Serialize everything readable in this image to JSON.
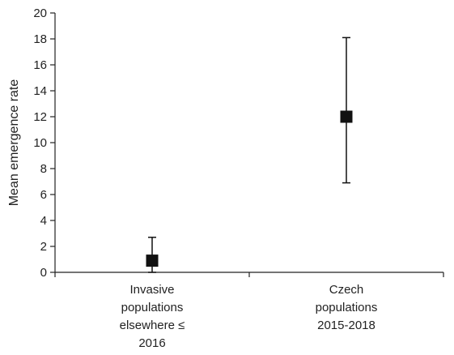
{
  "chart_data": {
    "type": "scatter",
    "title": "",
    "xlabel": "",
    "ylabel": "Mean emergence rate",
    "ylim": [
      0,
      20
    ],
    "yticks": [
      0,
      2,
      4,
      6,
      8,
      10,
      12,
      14,
      16,
      18,
      20
    ],
    "grid": false,
    "legend": "none",
    "categories": [
      [
        "Invasive",
        "populations",
        "elsewhere ≤",
        "2016"
      ],
      [
        "Czech",
        "populations",
        "2015-2018"
      ]
    ],
    "series": [
      {
        "values": [
          0.9,
          12.0
        ],
        "error_upper": [
          2.7,
          18.1
        ],
        "error_lower": [
          0.0,
          6.9
        ],
        "marker": "square",
        "color": "#111111"
      }
    ]
  }
}
